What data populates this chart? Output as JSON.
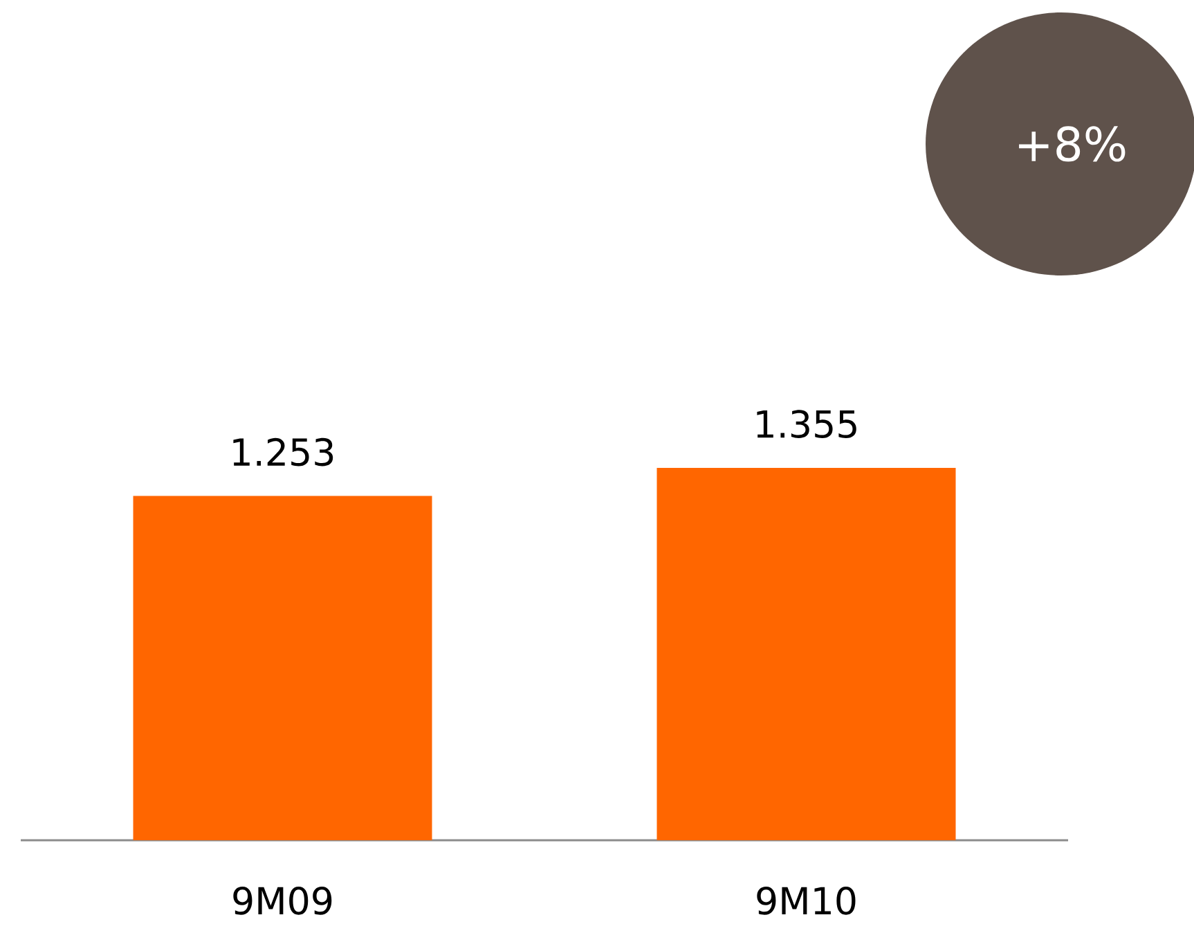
{
  "chart_data": {
    "type": "bar",
    "categories": [
      "9M09",
      "9M10"
    ],
    "values": [
      1.253,
      1.355
    ],
    "color": "#ff6600",
    "data_labels": true,
    "annotations": [
      "+8%"
    ]
  }
}
